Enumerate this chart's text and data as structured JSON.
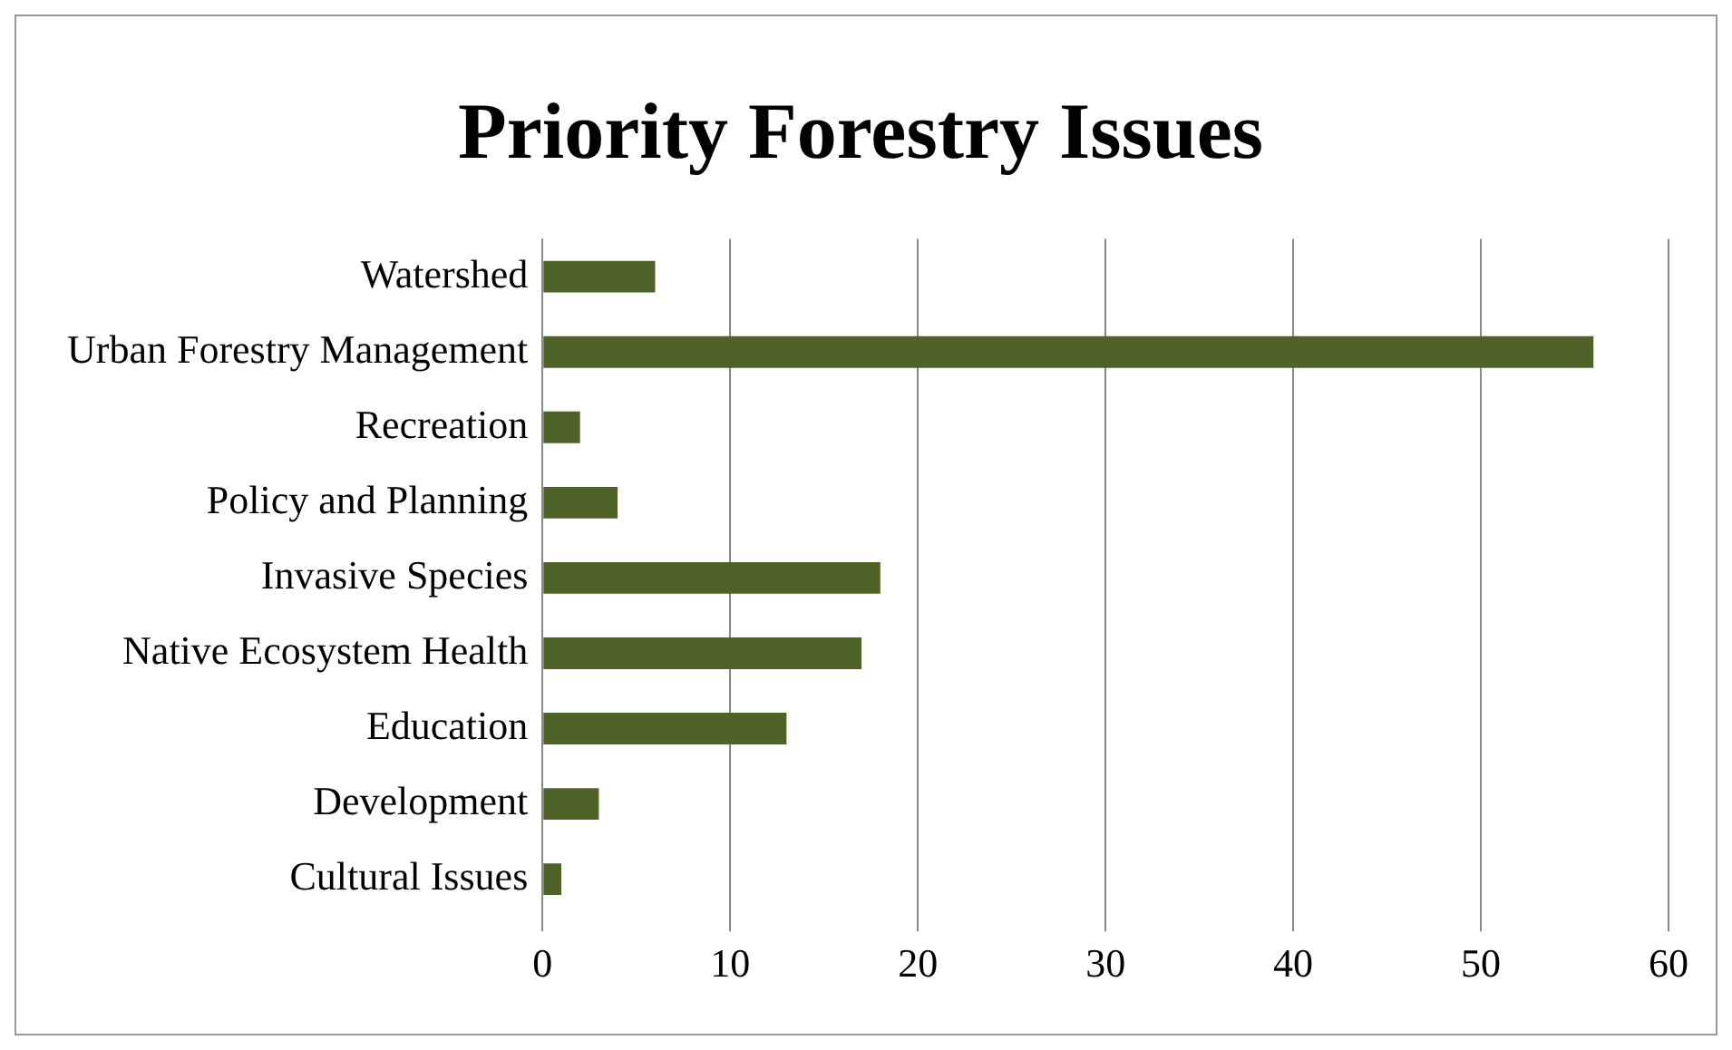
{
  "chart_data": {
    "type": "bar",
    "orientation": "horizontal",
    "title": "Priority Forestry Issues",
    "categories": [
      "Watershed",
      "Urban Forestry Management",
      "Recreation",
      "Policy and Planning",
      "Invasive Species",
      "Native Ecosystem Health",
      "Education",
      "Development",
      "Cultural Issues"
    ],
    "values": [
      6,
      56,
      2,
      4,
      18,
      17,
      13,
      3,
      1
    ],
    "color": "#4f6228",
    "xlim": [
      0,
      60
    ],
    "xticks": [
      0,
      10,
      20,
      30,
      40,
      50,
      60
    ],
    "grid": "x",
    "legend": false
  }
}
